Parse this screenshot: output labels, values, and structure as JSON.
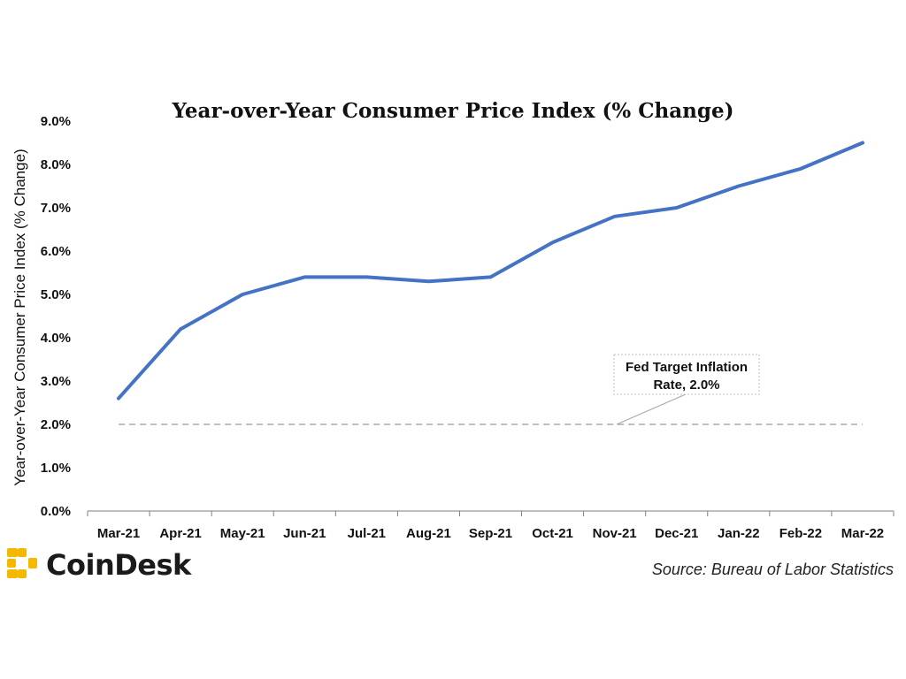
{
  "chart_data": {
    "type": "line",
    "title": "Year-over-Year Consumer Price Index (% Change)",
    "ylabel": "Year-over-Year Consumer Price Index (% Change)",
    "xlabel": "",
    "categories": [
      "Mar-21",
      "Apr-21",
      "May-21",
      "Jun-21",
      "Jul-21",
      "Aug-21",
      "Sep-21",
      "Oct-21",
      "Nov-21",
      "Dec-21",
      "Jan-22",
      "Feb-22",
      "Mar-22"
    ],
    "series": [
      {
        "values": [
          2.6,
          4.2,
          5.0,
          5.4,
          5.4,
          5.3,
          5.4,
          6.2,
          6.8,
          7.0,
          7.5,
          7.9,
          8.5
        ]
      }
    ],
    "yticks": [
      "0.0%",
      "1.0%",
      "2.0%",
      "3.0%",
      "4.0%",
      "5.0%",
      "6.0%",
      "7.0%",
      "8.0%",
      "9.0%"
    ],
    "ylim": [
      0,
      9
    ],
    "grid": false,
    "reference_line": {
      "value": 2.0,
      "label_lines": [
        "Fed Target Inflation",
        "Rate, 2.0%"
      ]
    },
    "colors": {
      "series": "#4472c4",
      "reference": "#bfbfbf",
      "axis": "#7f7f7f"
    }
  },
  "brand": {
    "name": "CoinDesk",
    "logo_color": "#f5b800"
  },
  "source_note": "Source: Bureau of Labor Statistics"
}
